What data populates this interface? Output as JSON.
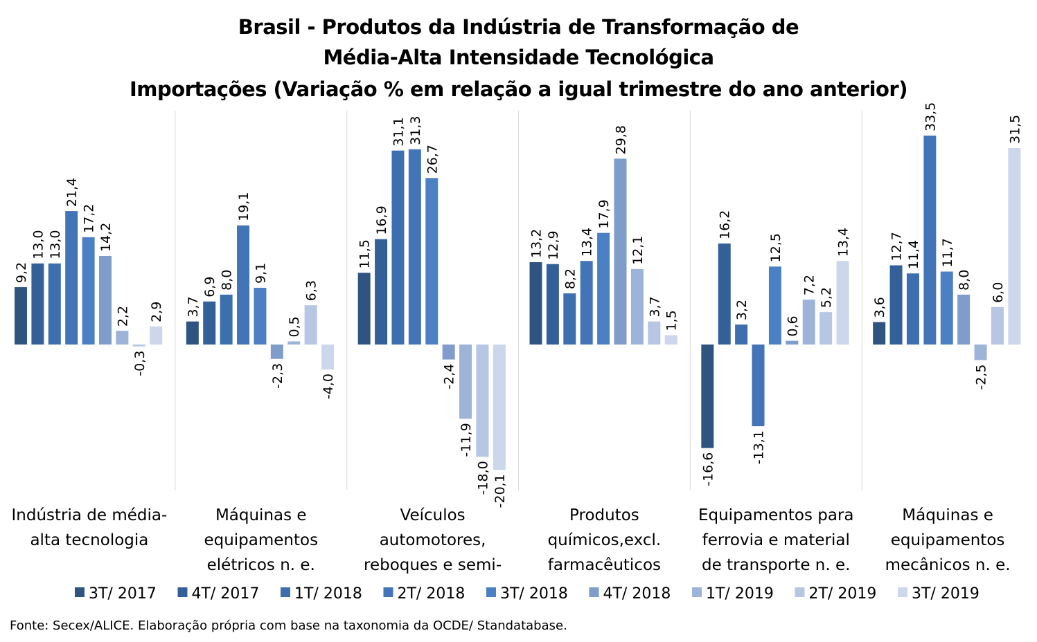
{
  "chart_data": {
    "type": "bar",
    "title_lines": [
      "Brasil - Produtos da Indústria de Transformação de",
      "Média-Alta Intensidade Tecnológica",
      "Importações (Variação % em relação a igual trimestre do ano anterior)"
    ],
    "categories": [
      [
        "Indústria de média-",
        "alta tecnologia"
      ],
      [
        "Máquinas e",
        "equipamentos",
        "elétricos n. e."
      ],
      [
        "Veículos",
        "automotores,",
        "reboques e semi-"
      ],
      [
        "Produtos",
        "químicos,excl.",
        "farmacêuticos"
      ],
      [
        "Equipamentos para",
        "ferrovia e material",
        "de transporte n. e."
      ],
      [
        "Máquinas e",
        "equipamentos",
        "mecânicos  n. e."
      ]
    ],
    "series": [
      {
        "name": "3T/ 2017",
        "color": "#2f5480",
        "values": [
          9.2,
          3.7,
          11.5,
          13.2,
          -16.6,
          3.6
        ]
      },
      {
        "name": "4T/ 2017",
        "color": "#34609a",
        "values": [
          13.0,
          6.9,
          16.9,
          12.9,
          16.2,
          12.7
        ]
      },
      {
        "name": "1T/ 2018",
        "color": "#3d6fae",
        "values": [
          13.0,
          8.0,
          31.1,
          8.2,
          3.2,
          11.4
        ]
      },
      {
        "name": "2T/ 2018",
        "color": "#4474b8",
        "values": [
          21.4,
          19.1,
          31.3,
          13.4,
          -13.1,
          33.5
        ]
      },
      {
        "name": "3T/ 2018",
        "color": "#4c80c4",
        "values": [
          17.2,
          9.1,
          26.7,
          17.9,
          12.5,
          11.7
        ]
      },
      {
        "name": "4T/ 2018",
        "color": "#7f9ccb",
        "values": [
          14.2,
          -2.3,
          -2.4,
          29.8,
          0.6,
          8.0
        ]
      },
      {
        "name": "1T/ 2019",
        "color": "#9db3d8",
        "values": [
          2.2,
          0.5,
          -11.9,
          12.1,
          7.2,
          -2.5
        ]
      },
      {
        "name": "2T/ 2019",
        "color": "#b6c6e3",
        "values": [
          -0.3,
          6.3,
          -18.0,
          3.7,
          5.2,
          6.0
        ]
      },
      {
        "name": "3T/ 2019",
        "color": "#ccd7ec",
        "values": [
          2.9,
          -4.0,
          -20.1,
          1.5,
          13.4,
          31.5
        ]
      }
    ],
    "ylim": [
      -23,
      38
    ],
    "legend_position": "bottom",
    "data_labels": true
  },
  "source": "Fonte: Secex/ALICE. Elaboração própria com base na taxonomia da OCDE/ Standatabase."
}
